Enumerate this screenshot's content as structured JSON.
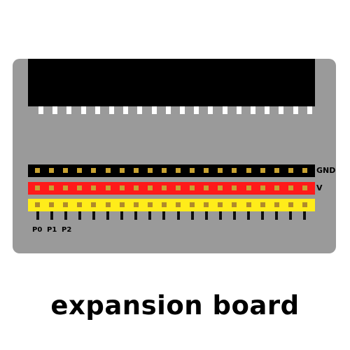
{
  "board": {
    "caption": "expansion board",
    "pin_count": 20,
    "connector_pin_count": 20,
    "rows": {
      "gnd_label": "GND",
      "v_label": "V"
    },
    "pin_labels": [
      "P0",
      "P1",
      "P2"
    ]
  },
  "colors": {
    "board": "#9a9a9a",
    "connector": "#000000",
    "gnd_row": "#000000",
    "v_row": "#ff1a1a",
    "signal_row": "#ffec1a",
    "pin_gold": "#c8a232"
  }
}
